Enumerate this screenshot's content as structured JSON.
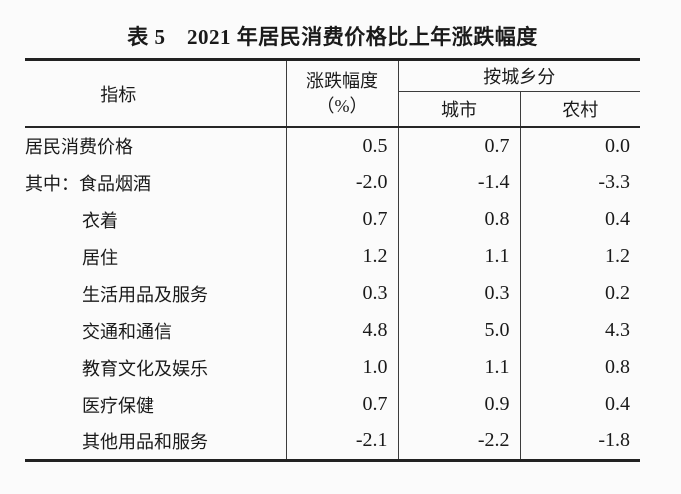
{
  "title": "表 5　2021 年居民消费价格比上年涨跌幅度",
  "table": {
    "header": {
      "indicator": "指标",
      "change_line1": "涨跌幅度",
      "change_line2": "（%）",
      "by_region": "按城乡分",
      "urban": "城市",
      "rural": "农村"
    },
    "rows": [
      {
        "label": "居民消费价格",
        "indent": false,
        "overall": "0.5",
        "urban": "0.7",
        "rural": "0.0"
      },
      {
        "label": "其中：食品烟酒",
        "indent": false,
        "overall": "-2.0",
        "urban": "-1.4",
        "rural": "-3.3"
      },
      {
        "label": "衣着",
        "indent": true,
        "overall": "0.7",
        "urban": "0.8",
        "rural": "0.4"
      },
      {
        "label": "居住",
        "indent": true,
        "overall": "1.2",
        "urban": "1.1",
        "rural": "1.2"
      },
      {
        "label": "生活用品及服务",
        "indent": true,
        "overall": "0.3",
        "urban": "0.3",
        "rural": "0.2"
      },
      {
        "label": "交通和通信",
        "indent": true,
        "overall": "4.8",
        "urban": "5.0",
        "rural": "4.3"
      },
      {
        "label": "教育文化及娱乐",
        "indent": true,
        "overall": "1.0",
        "urban": "1.1",
        "rural": "0.8"
      },
      {
        "label": "医疗保健",
        "indent": true,
        "overall": "0.7",
        "urban": "0.9",
        "rural": "0.4"
      },
      {
        "label": "其他用品和服务",
        "indent": true,
        "overall": "-2.1",
        "urban": "-2.2",
        "rural": "-1.8"
      }
    ]
  },
  "colors": {
    "text": "#1a1a1a",
    "line_heavy": "#222222",
    "line_light": "#3c3c3c",
    "background": "#fbfbfb"
  }
}
